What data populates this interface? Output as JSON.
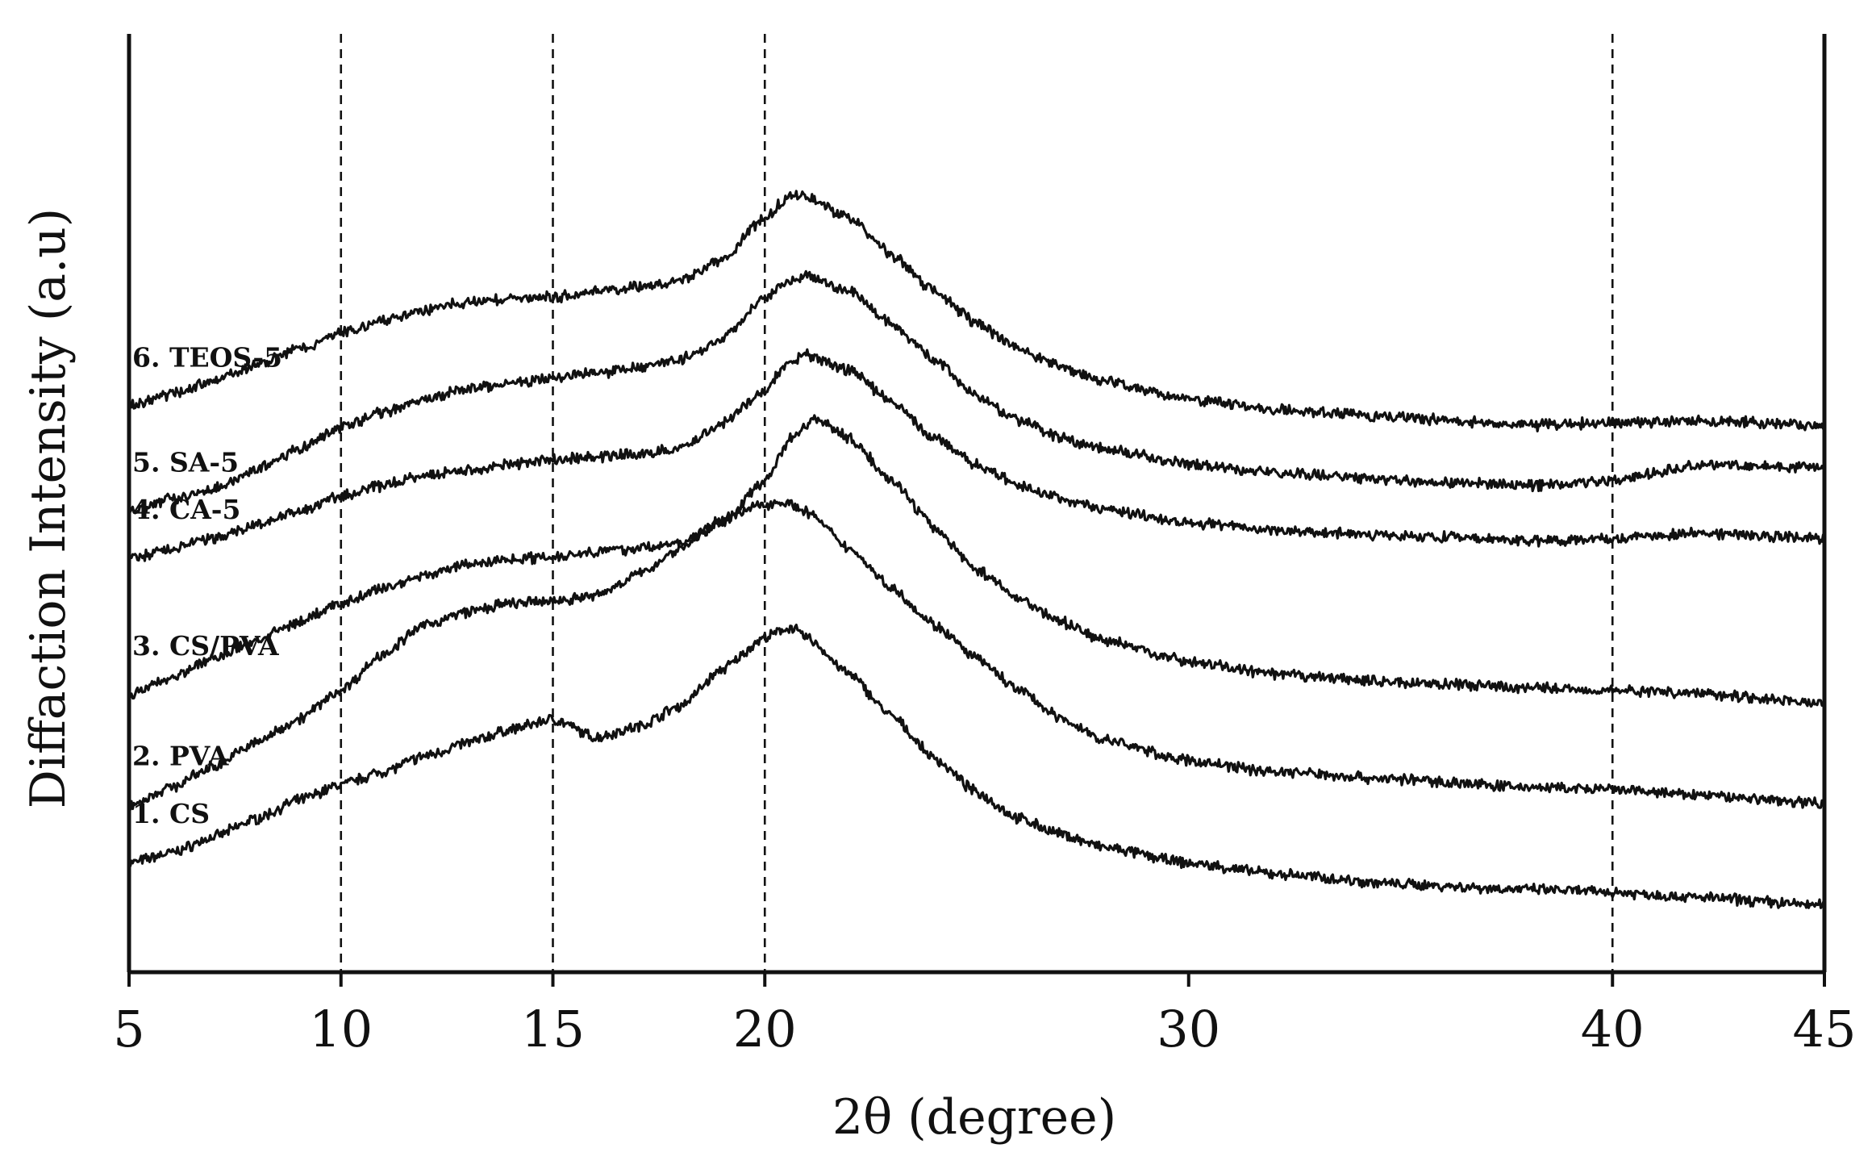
{
  "chart_data": {
    "type": "line",
    "xlabel": "2θ (degree)",
    "ylabel": "Diffaction Intensity (a.u)",
    "xlim": [
      5,
      45
    ],
    "xticks": [
      5,
      10,
      15,
      20,
      30,
      40,
      45
    ],
    "reference_lines_x": [
      10,
      15,
      20,
      40
    ],
    "y_axis_ticks": false,
    "grid": false,
    "series": [
      {
        "name": "1. CS",
        "x": [
          5,
          6,
          7,
          8,
          9,
          10,
          11,
          12,
          13,
          14,
          15,
          16,
          17,
          18,
          19,
          20,
          20.6,
          21,
          22,
          23,
          24,
          25,
          26,
          27,
          28,
          30,
          32,
          35,
          38,
          40,
          42,
          45
        ],
        "y": [
          1.0,
          1.2,
          1.5,
          1.85,
          2.2,
          2.5,
          2.75,
          3.05,
          3.3,
          3.55,
          3.75,
          3.4,
          3.6,
          4.0,
          4.7,
          5.3,
          5.5,
          5.3,
          4.6,
          3.8,
          3.0,
          2.35,
          1.85,
          1.55,
          1.3,
          1.0,
          0.8,
          0.6,
          0.5,
          0.45,
          0.35,
          0.2
        ]
      },
      {
        "name": "2. PVA",
        "x": [
          5,
          6,
          7,
          8,
          9,
          10,
          11,
          12,
          13,
          14,
          15,
          16,
          17,
          18,
          19,
          20,
          20.4,
          21,
          22,
          23,
          24,
          25,
          26,
          27,
          28,
          30,
          32,
          35,
          38,
          40,
          42,
          45
        ],
        "y": [
          2.1,
          2.45,
          2.85,
          3.3,
          3.75,
          4.3,
          5.0,
          5.55,
          5.8,
          5.95,
          6.0,
          6.1,
          6.5,
          7.0,
          7.55,
          7.85,
          7.9,
          7.7,
          7.0,
          6.25,
          5.55,
          4.9,
          4.3,
          3.75,
          3.35,
          2.95,
          2.75,
          2.6,
          2.45,
          2.4,
          2.3,
          2.15
        ]
      },
      {
        "name": "3. CS/PVA",
        "x": [
          5,
          6,
          7,
          8,
          9,
          10,
          11,
          12,
          13,
          14,
          15,
          16,
          17,
          18,
          19,
          20,
          20.6,
          21.2,
          22,
          23,
          24,
          25,
          26,
          27,
          28,
          30,
          32,
          35,
          38,
          40,
          42,
          45
        ],
        "y": [
          4.2,
          4.55,
          4.9,
          5.25,
          5.6,
          5.95,
          6.25,
          6.5,
          6.7,
          6.8,
          6.85,
          6.95,
          7.0,
          7.1,
          7.5,
          8.3,
          9.1,
          9.5,
          9.1,
          8.3,
          7.4,
          6.6,
          6.05,
          5.6,
          5.25,
          4.85,
          4.6,
          4.45,
          4.35,
          4.3,
          4.25,
          4.05
        ]
      },
      {
        "name": "4. CA-5",
        "x": [
          5,
          6,
          7,
          8,
          9,
          10,
          11,
          12,
          13,
          14,
          15,
          16,
          17,
          18,
          19,
          20,
          20.5,
          21,
          22,
          23,
          24,
          25,
          26,
          27,
          28,
          30,
          32,
          35,
          38,
          40,
          42,
          45
        ],
        "y": [
          6.8,
          7.0,
          7.2,
          7.45,
          7.7,
          8.0,
          8.2,
          8.4,
          8.5,
          8.6,
          8.7,
          8.75,
          8.8,
          8.9,
          9.4,
          10.0,
          10.5,
          10.7,
          10.4,
          9.8,
          9.1,
          8.6,
          8.2,
          7.95,
          7.75,
          7.5,
          7.35,
          7.25,
          7.15,
          7.2,
          7.3,
          7.2
        ]
      },
      {
        "name": "5. SA-5",
        "x": [
          5,
          6,
          7,
          8,
          9,
          10,
          11,
          12,
          13,
          14,
          15,
          16,
          17,
          18,
          19,
          20,
          20.5,
          21,
          22,
          23,
          24,
          25,
          26,
          27,
          28,
          30,
          32,
          35,
          38,
          40,
          42,
          45
        ],
        "y": [
          7.7,
          7.95,
          8.15,
          8.5,
          8.9,
          9.3,
          9.6,
          9.85,
          10.05,
          10.15,
          10.25,
          10.35,
          10.45,
          10.6,
          11.0,
          11.8,
          12.1,
          12.2,
          11.9,
          11.3,
          10.6,
          9.9,
          9.45,
          9.1,
          8.9,
          8.6,
          8.45,
          8.3,
          8.2,
          8.3,
          8.6,
          8.55
        ]
      },
      {
        "name": "6. TEOS-5",
        "x": [
          5,
          6,
          7,
          8,
          9,
          10,
          11,
          12,
          13,
          14,
          15,
          16,
          17,
          18,
          19,
          20,
          20.6,
          21,
          22,
          23,
          24,
          25,
          26,
          27,
          28,
          30,
          32,
          35,
          38,
          40,
          42,
          45
        ],
        "y": [
          9.7,
          9.95,
          10.2,
          10.5,
          10.8,
          11.1,
          11.35,
          11.55,
          11.7,
          11.75,
          11.8,
          11.9,
          12.0,
          12.1,
          12.5,
          13.3,
          13.75,
          13.7,
          13.3,
          12.6,
          11.9,
          11.3,
          10.8,
          10.45,
          10.2,
          9.85,
          9.65,
          9.5,
          9.35,
          9.4,
          9.45,
          9.35
        ]
      }
    ]
  }
}
